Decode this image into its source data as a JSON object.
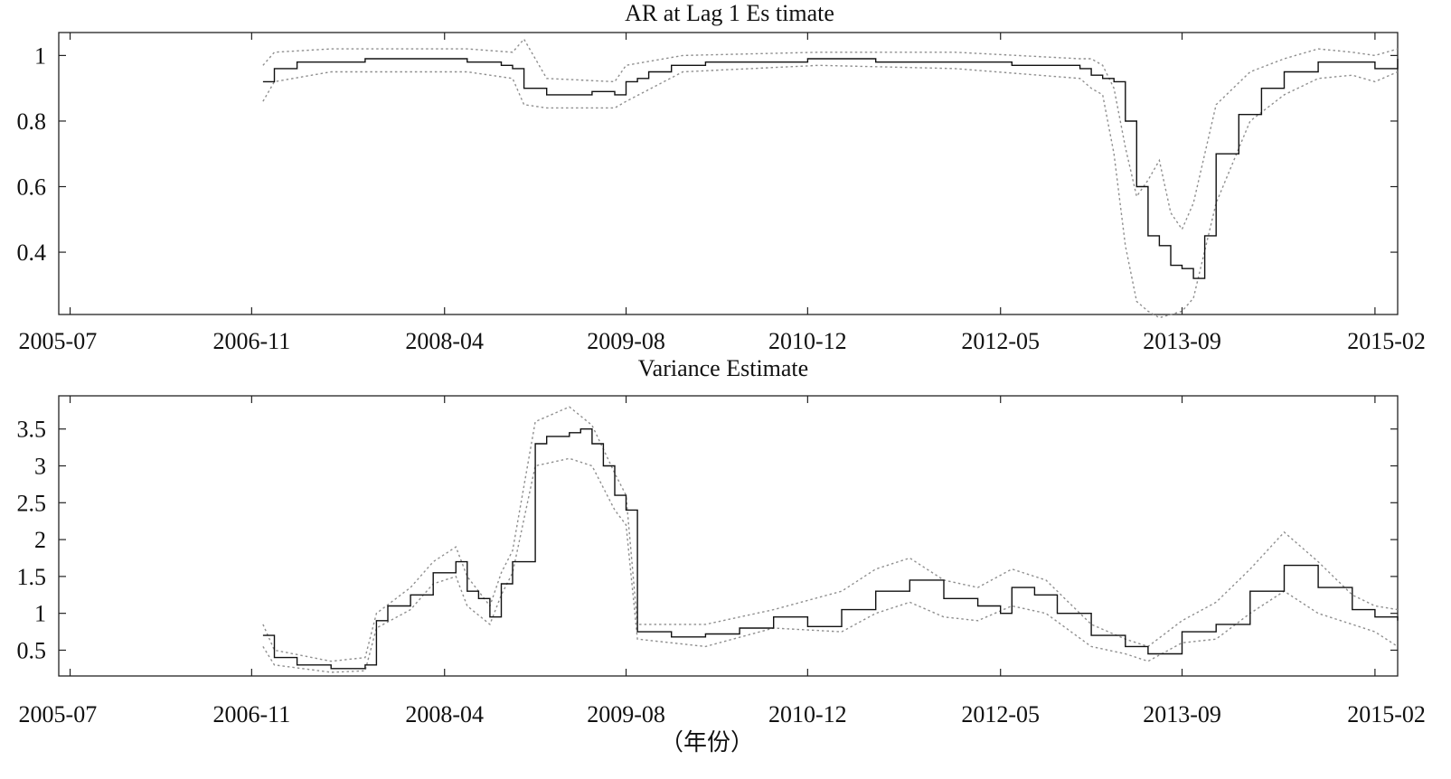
{
  "chart_data": [
    {
      "type": "line",
      "title": "AR at Lag 1 Es timate",
      "xlabel": "",
      "ylabel": "",
      "x_ticks": [
        "2005-07",
        "2006-11",
        "2008-04",
        "2009-08",
        "2010-12",
        "2012-05",
        "2013-09",
        "2015-02"
      ],
      "y_ticks": [
        0.4,
        0.6,
        0.8,
        1
      ],
      "xlim": [
        "2005-06",
        "2015-04"
      ],
      "ylim": [
        0.21,
        1.07
      ],
      "grid": false,
      "series": [
        {
          "role": "estimate",
          "style": "solid black step",
          "x": [
            "2006-12",
            "2007-01",
            "2007-03",
            "2007-06",
            "2007-09",
            "2007-12",
            "2008-03",
            "2008-06",
            "2008-09",
            "2008-10",
            "2008-11",
            "2009-01",
            "2009-03",
            "2009-05",
            "2009-07",
            "2009-08",
            "2009-09",
            "2009-10",
            "2009-12",
            "2010-03",
            "2010-06",
            "2010-12",
            "2011-06",
            "2011-12",
            "2012-06",
            "2012-12",
            "2013-01",
            "2013-02",
            "2013-03",
            "2013-04",
            "2013-05",
            "2013-06",
            "2013-07",
            "2013-08",
            "2013-09",
            "2013-10",
            "2013-11",
            "2013-12",
            "2014-02",
            "2014-04",
            "2014-06",
            "2014-09",
            "2014-12",
            "2015-02",
            "2015-04"
          ],
          "y": [
            0.92,
            0.96,
            0.98,
            0.98,
            0.99,
            0.99,
            0.99,
            0.98,
            0.97,
            0.96,
            0.9,
            0.88,
            0.88,
            0.89,
            0.88,
            0.92,
            0.93,
            0.95,
            0.97,
            0.98,
            0.98,
            0.99,
            0.98,
            0.98,
            0.97,
            0.96,
            0.94,
            0.93,
            0.92,
            0.8,
            0.6,
            0.45,
            0.42,
            0.36,
            0.35,
            0.32,
            0.45,
            0.7,
            0.82,
            0.9,
            0.95,
            0.98,
            0.98,
            0.96,
            0.99
          ]
        },
        {
          "role": "upper-bound",
          "style": "dotted grey",
          "x": [
            "2006-12",
            "2007-01",
            "2007-06",
            "2008-06",
            "2008-10",
            "2008-11",
            "2009-01",
            "2009-07",
            "2009-08",
            "2010-01",
            "2011-01",
            "2012-01",
            "2012-12",
            "2013-01",
            "2013-02",
            "2013-03",
            "2013-04",
            "2013-05",
            "2013-06",
            "2013-07",
            "2013-08",
            "2013-09",
            "2013-10",
            "2013-12",
            "2014-03",
            "2014-06",
            "2014-09",
            "2014-12",
            "2015-02",
            "2015-04"
          ],
          "y": [
            0.97,
            1.01,
            1.02,
            1.02,
            1.01,
            1.05,
            0.93,
            0.92,
            0.97,
            1.0,
            1.01,
            1.01,
            0.99,
            0.99,
            0.97,
            0.9,
            0.72,
            0.57,
            0.62,
            0.68,
            0.52,
            0.47,
            0.55,
            0.85,
            0.95,
            0.99,
            1.02,
            1.01,
            1.0,
            1.02
          ]
        },
        {
          "role": "lower-bound",
          "style": "dotted grey",
          "x": [
            "2006-12",
            "2007-01",
            "2007-06",
            "2008-06",
            "2008-10",
            "2008-11",
            "2009-01",
            "2009-07",
            "2009-08",
            "2010-01",
            "2011-01",
            "2012-01",
            "2012-12",
            "2013-01",
            "2013-02",
            "2013-03",
            "2013-04",
            "2013-05",
            "2013-06",
            "2013-07",
            "2013-08",
            "2013-09",
            "2013-10",
            "2013-12",
            "2014-03",
            "2014-06",
            "2014-09",
            "2014-12",
            "2015-02",
            "2015-04"
          ],
          "y": [
            0.86,
            0.92,
            0.95,
            0.95,
            0.93,
            0.85,
            0.84,
            0.84,
            0.86,
            0.95,
            0.97,
            0.96,
            0.93,
            0.9,
            0.88,
            0.7,
            0.42,
            0.25,
            0.22,
            0.2,
            0.21,
            0.22,
            0.26,
            0.55,
            0.8,
            0.88,
            0.93,
            0.94,
            0.92,
            0.95
          ]
        }
      ]
    },
    {
      "type": "line",
      "title": "Variance Estimate",
      "xlabel": "（年份）",
      "ylabel": "",
      "x_ticks": [
        "2005-07",
        "2006-11",
        "2008-04",
        "2009-08",
        "2010-12",
        "2012-05",
        "2013-09",
        "2015-02"
      ],
      "y_ticks": [
        0.5,
        1,
        1.5,
        2,
        2.5,
        3,
        3.5
      ],
      "xlim": [
        "2005-06",
        "2015-04"
      ],
      "ylim": [
        0.15,
        3.95
      ],
      "grid": false,
      "series": [
        {
          "role": "estimate",
          "style": "solid black step",
          "x": [
            "2006-12",
            "2007-01",
            "2007-03",
            "2007-06",
            "2007-09",
            "2007-10",
            "2007-11",
            "2008-01",
            "2008-03",
            "2008-05",
            "2008-06",
            "2008-07",
            "2008-08",
            "2008-09",
            "2008-10",
            "2008-12",
            "2009-01",
            "2009-03",
            "2009-04",
            "2009-05",
            "2009-06",
            "2009-07",
            "2009-08",
            "2009-09",
            "2009-12",
            "2010-03",
            "2010-06",
            "2010-09",
            "2010-12",
            "2011-03",
            "2011-06",
            "2011-09",
            "2011-12",
            "2012-03",
            "2012-05",
            "2012-06",
            "2012-08",
            "2012-10",
            "2013-01",
            "2013-04",
            "2013-06",
            "2013-09",
            "2013-12",
            "2014-03",
            "2014-06",
            "2014-09",
            "2014-12",
            "2015-02",
            "2015-04"
          ],
          "y": [
            0.7,
            0.4,
            0.3,
            0.25,
            0.3,
            0.9,
            1.1,
            1.25,
            1.55,
            1.7,
            1.3,
            1.2,
            0.95,
            1.4,
            1.7,
            3.3,
            3.4,
            3.45,
            3.5,
            3.3,
            3.0,
            2.6,
            2.4,
            0.75,
            0.68,
            0.72,
            0.8,
            0.95,
            0.82,
            1.05,
            1.3,
            1.45,
            1.2,
            1.1,
            1.0,
            1.35,
            1.25,
            1.0,
            0.7,
            0.55,
            0.45,
            0.75,
            0.85,
            1.3,
            1.65,
            1.35,
            1.05,
            0.95,
            0.9
          ]
        },
        {
          "role": "upper-bound",
          "style": "dotted grey",
          "x": [
            "2006-12",
            "2007-01",
            "2007-06",
            "2007-09",
            "2007-10",
            "2008-01",
            "2008-03",
            "2008-05",
            "2008-06",
            "2008-08",
            "2008-09",
            "2008-10",
            "2008-12",
            "2009-03",
            "2009-05",
            "2009-07",
            "2009-08",
            "2009-09",
            "2010-03",
            "2010-09",
            "2011-03",
            "2011-06",
            "2011-09",
            "2011-12",
            "2012-03",
            "2012-06",
            "2012-09",
            "2013-01",
            "2013-04",
            "2013-06",
            "2013-09",
            "2013-12",
            "2014-03",
            "2014-06",
            "2014-09",
            "2014-12",
            "2015-02",
            "2015-04"
          ],
          "y": [
            0.85,
            0.5,
            0.35,
            0.4,
            1.0,
            1.35,
            1.7,
            1.9,
            1.5,
            1.1,
            1.55,
            1.85,
            3.6,
            3.8,
            3.55,
            2.9,
            2.6,
            0.85,
            0.85,
            1.05,
            1.3,
            1.6,
            1.75,
            1.45,
            1.35,
            1.6,
            1.45,
            0.85,
            0.65,
            0.55,
            0.9,
            1.15,
            1.6,
            2.1,
            1.7,
            1.25,
            1.1,
            1.05
          ]
        },
        {
          "role": "lower-bound",
          "style": "dotted grey",
          "x": [
            "2006-12",
            "2007-01",
            "2007-06",
            "2007-09",
            "2007-10",
            "2008-01",
            "2008-03",
            "2008-05",
            "2008-06",
            "2008-08",
            "2008-09",
            "2008-10",
            "2008-12",
            "2009-03",
            "2009-05",
            "2009-07",
            "2009-08",
            "2009-09",
            "2010-03",
            "2010-09",
            "2011-03",
            "2011-06",
            "2011-09",
            "2011-12",
            "2012-03",
            "2012-06",
            "2012-09",
            "2013-01",
            "2013-04",
            "2013-06",
            "2013-09",
            "2013-12",
            "2014-03",
            "2014-06",
            "2014-09",
            "2014-12",
            "2015-02",
            "2015-04"
          ],
          "y": [
            0.55,
            0.3,
            0.2,
            0.22,
            0.8,
            1.05,
            1.4,
            1.5,
            1.1,
            0.85,
            1.25,
            1.55,
            3.0,
            3.1,
            3.0,
            2.4,
            2.2,
            0.65,
            0.55,
            0.8,
            0.75,
            1.0,
            1.15,
            0.95,
            0.9,
            1.1,
            1.0,
            0.55,
            0.45,
            0.35,
            0.6,
            0.65,
            1.0,
            1.3,
            1.0,
            0.85,
            0.75,
            0.55
          ]
        }
      ]
    }
  ]
}
